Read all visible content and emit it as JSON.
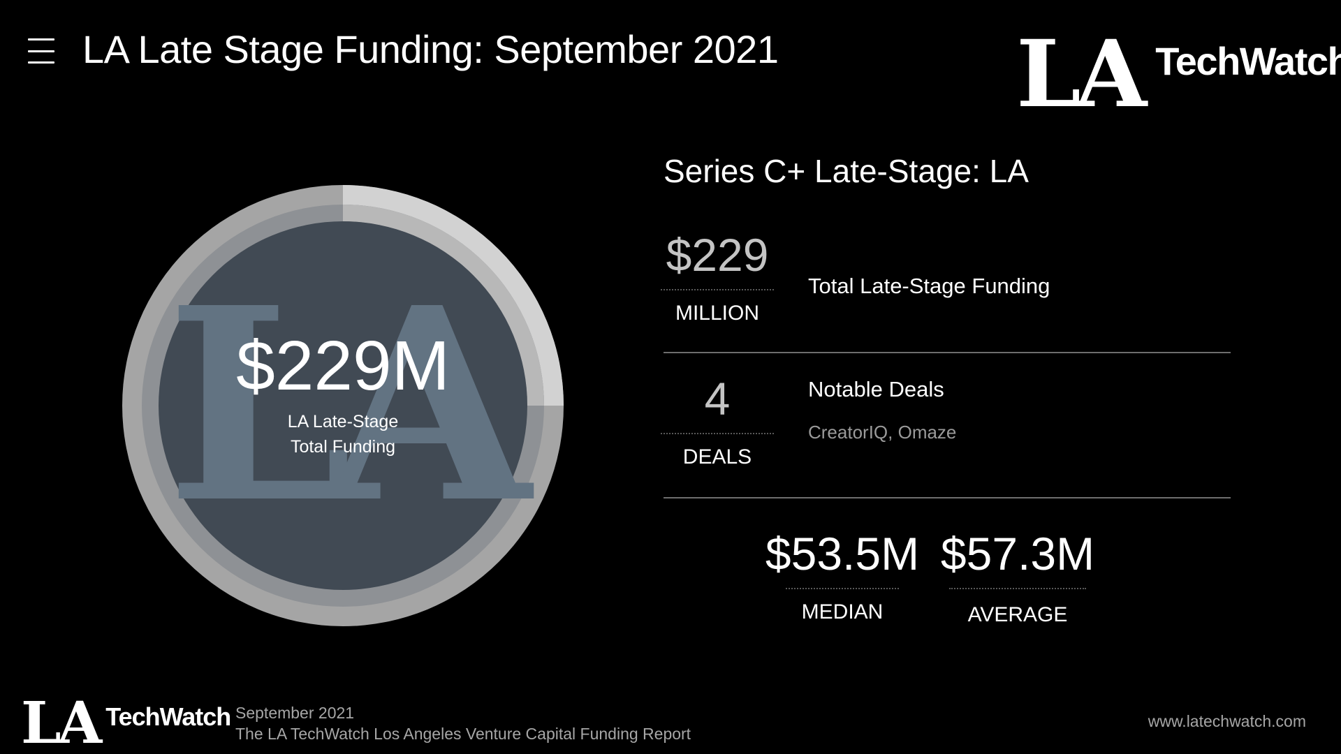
{
  "header": {
    "menu_icon": "hamburger-menu-icon",
    "title": "LA Late Stage Funding: September 2021",
    "logo": {
      "la": "LA",
      "techwatch": "TechWatch"
    }
  },
  "donut": {
    "watermark": "LA",
    "value": "$229M",
    "label": "LA Late-Stage Total Funding",
    "highlight_fraction": 0.25,
    "colors": {
      "outer_ring": "#a5a5a5",
      "outer_highlight": "#d2d2d2",
      "inner_ring": "#8e9195",
      "inner_highlight": "#b8b8b8",
      "center": "#414a54",
      "watermark": "#627382"
    }
  },
  "summary": {
    "title": "Series C+ Late-Stage: LA",
    "total": {
      "number": "$229",
      "unit": "MILLION",
      "label": "Total Late-Stage Funding"
    },
    "deals": {
      "number": "4",
      "unit": "DEALS",
      "label": "Notable Deals",
      "notable": "CreatorIQ, Omaze"
    },
    "median": {
      "value": "$53.5M",
      "label": "MEDIAN"
    },
    "average": {
      "value": "$57.3M",
      "label": "AVERAGE"
    }
  },
  "footer": {
    "logo": {
      "la": "LA",
      "techwatch": "TechWatch"
    },
    "date": "September 2021",
    "report": "The LA TechWatch Los Angeles Venture Capital Funding Report",
    "url": "www.latechwatch.com"
  }
}
